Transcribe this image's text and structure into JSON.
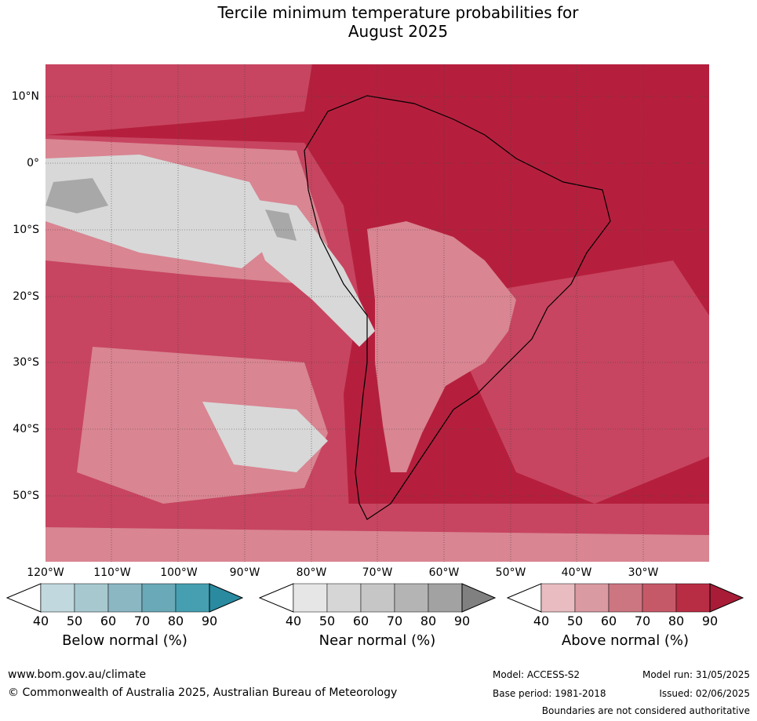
{
  "title_line1": "Tercile minimum temperature probabilities for",
  "title_line2": "August 2025",
  "lat_labels": [
    "10°N",
    "0°",
    "10°S",
    "20°S",
    "30°S",
    "40°S",
    "50°S"
  ],
  "lon_labels": [
    "120°W",
    "110°W",
    "100°W",
    "90°W",
    "80°W",
    "70°W",
    "60°W",
    "50°W",
    "40°W",
    "30°W"
  ],
  "colorbars": [
    {
      "title": "Below normal (%)",
      "ticks": [
        "40",
        "50",
        "60",
        "70",
        "80",
        "90"
      ],
      "colors": [
        "#c0d8de",
        "#a7c8cf",
        "#8bb7c3",
        "#6aa9b7",
        "#459fb0",
        "#2a8aa0"
      ]
    },
    {
      "title": "Near normal (%)",
      "ticks": [
        "40",
        "50",
        "60",
        "70",
        "80",
        "90"
      ],
      "colors": [
        "#e6e6e6",
        "#d6d6d6",
        "#c6c6c6",
        "#b4b4b4",
        "#a2a2a2",
        "#808080"
      ]
    },
    {
      "title": "Above normal (%)",
      "ticks": [
        "40",
        "50",
        "60",
        "70",
        "80",
        "90"
      ],
      "colors": [
        "#e8bcc0",
        "#da9aa2",
        "#cc7682",
        "#c65968",
        "#b82d44",
        "#a81c38"
      ]
    }
  ],
  "footer": {
    "url": "www.bom.gov.au/climate",
    "copyright": "© Commonwealth of Australia 2025, Australian Bureau of Meteorology",
    "model": "Model: ACCESS-S2",
    "model_run": "Model run: 31/05/2025",
    "base_period": "Base period: 1981-2018",
    "issued": "Issued: 02/06/2025",
    "disclaimer": "Boundaries are not considered authoritative"
  },
  "map_colors": {
    "above_high": "#b51f3d",
    "above_mid": "#c74560",
    "above_low": "#d98592",
    "near": "#d8d8d8",
    "near_dark": "#a8a8a8"
  }
}
